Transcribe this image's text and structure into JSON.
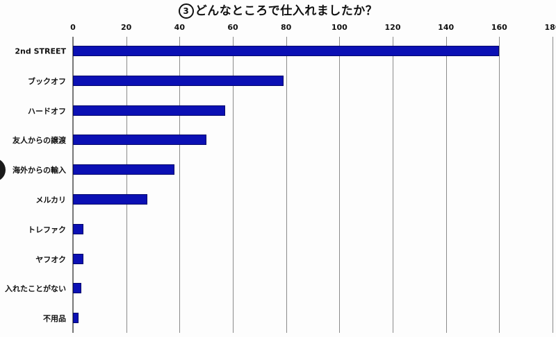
{
  "header": {
    "title_number": "3",
    "title_text": "どんなところで仕入れましたか？"
  },
  "chart_data": {
    "type": "bar",
    "orientation": "horizontal",
    "title": "③どんなところで仕入れましたか？",
    "xlabel": "",
    "ylabel": "",
    "xlim": [
      0,
      180
    ],
    "x_ticks": [
      0,
      20,
      40,
      60,
      80,
      100,
      120,
      140,
      160,
      180
    ],
    "x_tick_labels": [
      "0",
      "20",
      "40",
      "60",
      "80",
      "100",
      "120",
      "140",
      "160",
      "180"
    ],
    "x_axis_position": "top",
    "grid": true,
    "legend": null,
    "bar_color": "#0b10b4",
    "categories": [
      "2nd STREET",
      "ブックオフ",
      "ハードオフ",
      "友人からの譲渡",
      "海外からの輸入",
      "メルカリ",
      "トレファク",
      "ヤフオク",
      "仕入れたことがない",
      "不用品"
    ],
    "values": [
      160,
      79,
      57,
      50,
      38,
      28,
      4,
      4,
      3,
      2
    ]
  },
  "labels_display": [
    "2nd STREET",
    "ブックオフ",
    "ハードオフ",
    "友人からの譲渡",
    "海外からの輸入",
    "メルカリ",
    "トレファク",
    "ヤフオク",
    "入れたことがない",
    "不用品"
  ]
}
